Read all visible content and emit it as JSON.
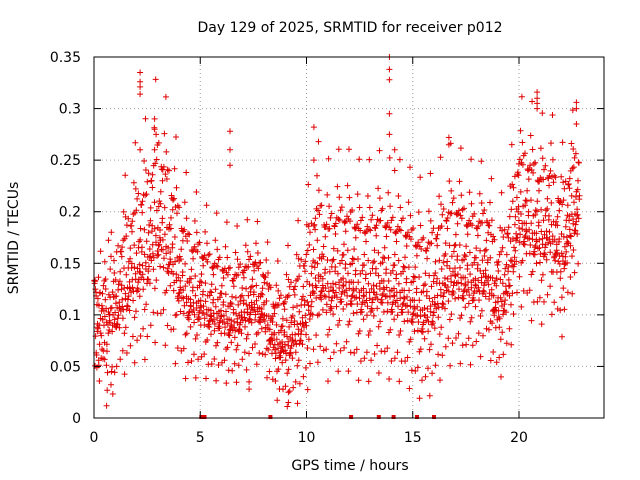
{
  "chart_data": {
    "type": "scatter",
    "title": "Day 129 of 2025, SRMTID for receiver p012",
    "xlabel": "GPS time / hours",
    "ylabel": "SRMTID / TECUs",
    "xlim": [
      0,
      24
    ],
    "ylim": [
      0,
      0.35
    ],
    "xticks": [
      0,
      5,
      10,
      15,
      20
    ],
    "xtick_labels": [
      "0",
      "5",
      "10",
      "15",
      "20"
    ],
    "yticks": [
      0,
      0.05,
      0.1,
      0.15,
      0.2,
      0.25,
      0.3,
      0.35
    ],
    "ytick_labels": [
      "0",
      "0.05",
      "0.1",
      "0.15",
      "0.2",
      "0.25",
      "0.3",
      "0.35"
    ],
    "grid": true,
    "marker": "+",
    "color": "#e00000",
    "trend": [
      [
        0.0,
        0.1
      ],
      [
        0.5,
        0.09
      ],
      [
        1.0,
        0.1
      ],
      [
        1.5,
        0.12
      ],
      [
        2.0,
        0.14
      ],
      [
        2.5,
        0.15
      ],
      [
        3.0,
        0.18
      ],
      [
        3.5,
        0.16
      ],
      [
        4.0,
        0.13
      ],
      [
        4.5,
        0.11
      ],
      [
        5.0,
        0.11
      ],
      [
        5.5,
        0.1
      ],
      [
        6.0,
        0.1
      ],
      [
        6.5,
        0.09
      ],
      [
        7.0,
        0.1
      ],
      [
        7.5,
        0.11
      ],
      [
        8.0,
        0.1
      ],
      [
        8.5,
        0.07
      ],
      [
        9.0,
        0.07
      ],
      [
        9.5,
        0.08
      ],
      [
        10.0,
        0.1
      ],
      [
        10.5,
        0.14
      ],
      [
        11.0,
        0.12
      ],
      [
        11.5,
        0.13
      ],
      [
        12.0,
        0.13
      ],
      [
        12.5,
        0.12
      ],
      [
        13.0,
        0.12
      ],
      [
        13.5,
        0.13
      ],
      [
        14.0,
        0.12
      ],
      [
        14.5,
        0.12
      ],
      [
        15.0,
        0.11
      ],
      [
        15.5,
        0.1
      ],
      [
        16.0,
        0.11
      ],
      [
        16.5,
        0.13
      ],
      [
        17.0,
        0.14
      ],
      [
        17.5,
        0.13
      ],
      [
        18.0,
        0.13
      ],
      [
        18.5,
        0.14
      ],
      [
        19.0,
        0.1
      ],
      [
        19.5,
        0.13
      ],
      [
        20.0,
        0.19
      ],
      [
        20.5,
        0.18
      ],
      [
        21.0,
        0.17
      ],
      [
        21.5,
        0.18
      ],
      [
        22.0,
        0.15
      ],
      [
        22.5,
        0.19
      ],
      [
        22.8,
        0.2
      ]
    ],
    "spread": [
      [
        0.0,
        0.03
      ],
      [
        2.0,
        0.05
      ],
      [
        3.0,
        0.06
      ],
      [
        5.0,
        0.04
      ],
      [
        8.5,
        0.03
      ],
      [
        10.5,
        0.05
      ],
      [
        14.0,
        0.05
      ],
      [
        17.0,
        0.05
      ],
      [
        19.0,
        0.04
      ],
      [
        20.5,
        0.05
      ],
      [
        22.8,
        0.04
      ]
    ],
    "spikes": [
      {
        "x": 2.17,
        "ys": [
          0.335,
          0.326,
          0.321,
          0.314,
          0.26
        ]
      },
      {
        "x": 2.85,
        "ys": [
          0.29,
          0.28,
          0.26
        ]
      },
      {
        "x": 6.4,
        "ys": [
          0.278,
          0.26,
          0.245
        ]
      },
      {
        "x": 10.35,
        "ys": [
          0.282,
          0.25
        ]
      },
      {
        "x": 13.9,
        "ys": [
          0.35,
          0.338,
          0.328,
          0.295,
          0.275
        ]
      },
      {
        "x": 14.15,
        "ys": [
          0.26,
          0.24
        ]
      },
      {
        "x": 20.85,
        "ys": [
          0.316,
          0.31,
          0.305,
          0.3
        ]
      },
      {
        "x": 22.7,
        "ys": [
          0.306,
          0.3,
          0.285
        ]
      },
      {
        "x": 16.7,
        "ys": [
          0.272,
          0.265
        ]
      },
      {
        "x": 9.15,
        "ys": [
          0.015,
          0.025
        ]
      },
      {
        "x": 7.3,
        "ys": [
          0.028,
          0.035
        ]
      }
    ],
    "points_at_zero_x": [
      5.05,
      5.2,
      8.3,
      12.1,
      13.4,
      14.1,
      15.2,
      16.0
    ]
  }
}
